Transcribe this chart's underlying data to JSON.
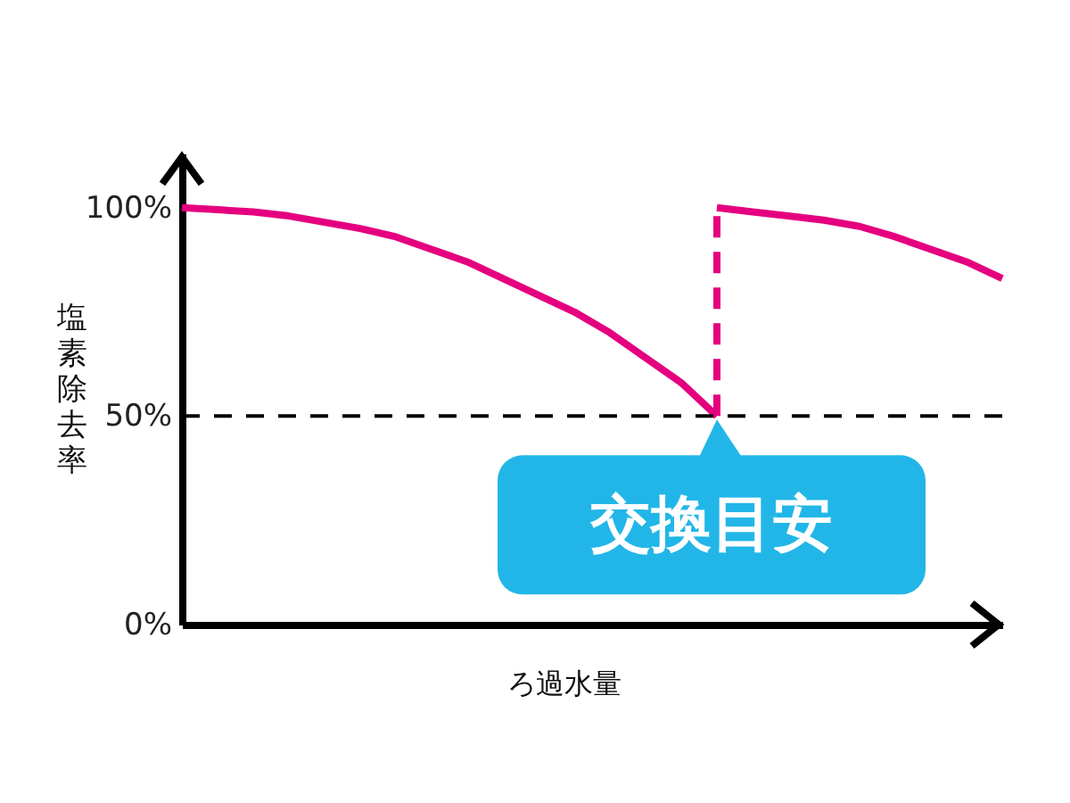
{
  "chart_data": {
    "type": "line",
    "xlabel": "ろ過水量",
    "ylabel": "塩素除去率",
    "categories": [
      null,
      null,
      null,
      null,
      null,
      null,
      null,
      null,
      null,
      null,
      null,
      null,
      null,
      null,
      null,
      null,
      null,
      null,
      null,
      null,
      null,
      null,
      null,
      null
    ],
    "ylim": [
      0,
      113
    ],
    "yticks": [
      {
        "value": 0,
        "label": "0%"
      },
      {
        "value": 50,
        "label": "50%"
      },
      {
        "value": 100,
        "label": "100%"
      }
    ],
    "tick_labels": "y",
    "series": [
      {
        "color": "#e4007f",
        "values": [
          100,
          99.5,
          99,
          98,
          96.5,
          95,
          93,
          90,
          87,
          83,
          79,
          75,
          70,
          64,
          58,
          50,
          null,
          null,
          null,
          null,
          null,
          null,
          null,
          null
        ]
      },
      {
        "color": "#e4007f",
        "values": [
          null,
          null,
          null,
          null,
          null,
          null,
          null,
          null,
          null,
          null,
          null,
          null,
          null,
          null,
          null,
          100,
          99,
          98,
          97,
          95.5,
          93,
          90,
          87,
          83
        ]
      }
    ],
    "ref_lines": [
      {
        "axis": "y",
        "value": 50,
        "color": "#000000",
        "line_style": "dashed"
      }
    ],
    "annotations": [
      {
        "text": "交換目安",
        "y": 50
      }
    ]
  }
}
